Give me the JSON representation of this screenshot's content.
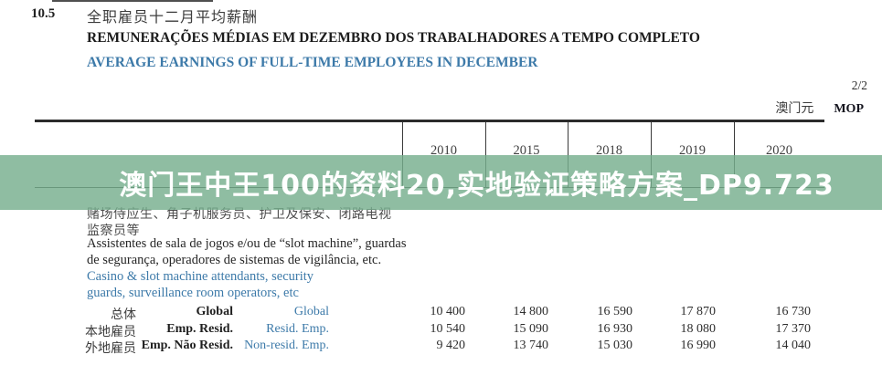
{
  "header": {
    "section_number": "10.5",
    "title_zh": "全职雇员十二月平均薪酬",
    "title_pt": "REMUNERAÇÕES MÉDIAS EM DEZEMBRO DOS TRABALHADORES A TEMPO COMPLETO",
    "title_en": "AVERAGE EARNINGS OF FULL-TIME EMPLOYEES IN DECEMBER"
  },
  "page": {
    "page_number": "2/2",
    "currency_zh": "澳门元",
    "currency_code": "MOP"
  },
  "banner": {
    "text": "澳门王中王100的资料20,实地验证策略方案_DP9.723",
    "background_color": "#8FBCA1",
    "text_color": "#FFFFFF"
  },
  "occupation": {
    "zh_line1": "赌场侍应生、角子机服务员、护卫及保安、闭路电视",
    "zh_line2": "监察员等",
    "pt_line1": "Assistentes de sala de jogos e/ou de “slot machine”, guardas",
    "pt_line2": "de segurança, operadores de sistemas de vigilância, etc.",
    "en_line1": "Casino & slot machine attendants, security",
    "en_line2": "guards, surveillance room operators, etc"
  },
  "table": {
    "years": [
      "2010",
      "2015",
      "2018",
      "2019",
      "2020"
    ],
    "rows": [
      {
        "zh": "总体",
        "pt": "Global",
        "en": "Global",
        "values": [
          "10 400",
          "14 800",
          "16 590",
          "17 870",
          "16 730"
        ]
      },
      {
        "zh": "本地雇员",
        "pt": "Emp. Resid.",
        "en": "Resid. Emp.",
        "values": [
          "10 540",
          "15 090",
          "16 930",
          "18 080",
          "17 370"
        ]
      },
      {
        "zh": "外地雇员",
        "pt": "Emp. Não Resid.",
        "en": "Non-resid. Emp.",
        "values": [
          "9 420",
          "13 740",
          "15 030",
          "16 990",
          "14 040"
        ]
      }
    ]
  },
  "colors": {
    "accent_blue": "#3D7AA9",
    "table_line": "#2C2C2C"
  }
}
